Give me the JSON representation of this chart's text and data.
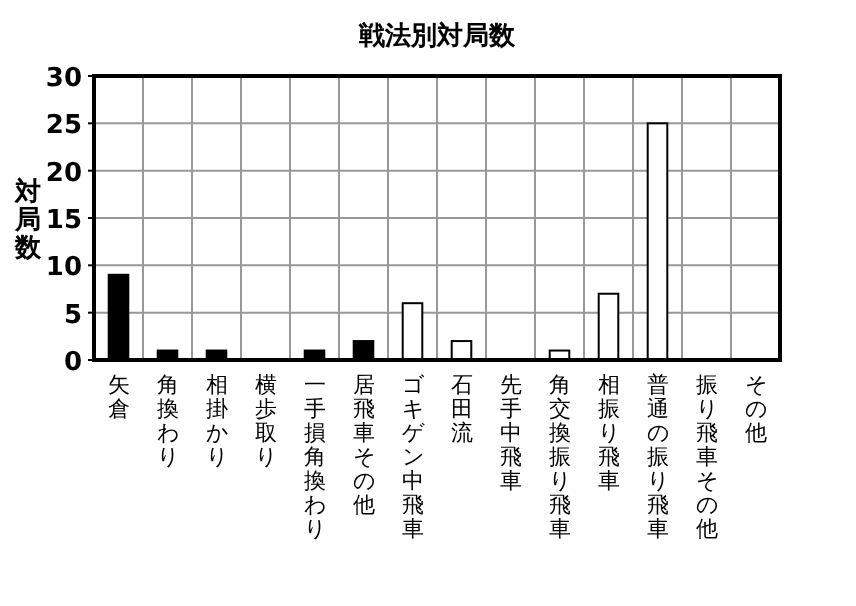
{
  "chart_data": {
    "type": "bar",
    "title": "戦法別対局数",
    "ylabel": "対局数",
    "categories": [
      "矢倉",
      "角換わり",
      "相掛かり",
      "横歩取り",
      "一手損角換わり",
      "居飛車その他",
      "ゴキゲン中飛車",
      "石田流",
      "先手中飛車",
      "角交換振り飛車",
      "相振り飛車",
      "普通の振り飛車",
      "振り飛車その他",
      "その他"
    ],
    "values": [
      9,
      1,
      1,
      0,
      1,
      2,
      6,
      2,
      0,
      1,
      7,
      25,
      0,
      0
    ],
    "colors": [
      "#000000",
      "#000000",
      "#000000",
      "#000000",
      "#000000",
      "#000000",
      "#ffffff",
      "#ffffff",
      "#ffffff",
      "#ffffff",
      "#ffffff",
      "#ffffff",
      "#ffffff",
      "#ffffff"
    ],
    "ylim": [
      0,
      30
    ],
    "yticks": [
      0,
      5,
      10,
      15,
      20,
      25,
      30
    ],
    "grid": true
  }
}
